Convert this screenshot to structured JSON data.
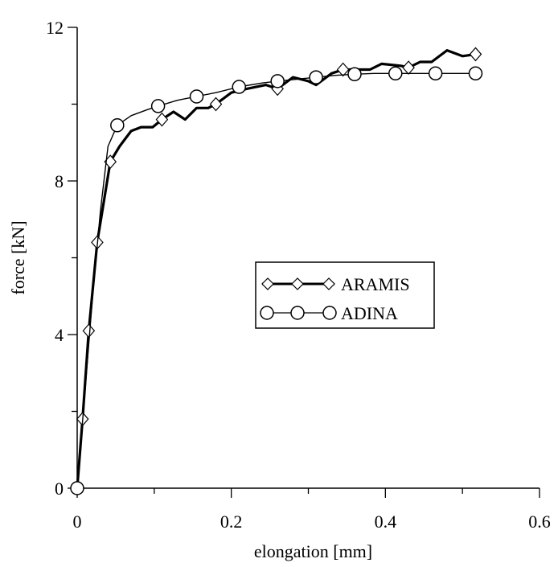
{
  "chart_data": {
    "type": "line",
    "xlabel": "elongation [mm]",
    "ylabel": "force [kN]",
    "xlim": [
      0,
      0.6
    ],
    "ylim": [
      0,
      12
    ],
    "xticks": [
      0,
      0.2,
      0.4,
      0.6
    ],
    "xtick_labels": [
      "0",
      "0.2",
      "0.4",
      "0.6"
    ],
    "yticks": [
      0,
      4,
      8,
      12
    ],
    "ytick_labels": [
      "0",
      "4",
      "8",
      "12"
    ],
    "grid": false,
    "legend_position": "center-right",
    "series": [
      {
        "name": "ARAMIS",
        "color": "#000000",
        "marker": "diamond",
        "line": [
          [
            0,
            0
          ],
          [
            0.007,
            1.8
          ],
          [
            0.015,
            4.1
          ],
          [
            0.026,
            6.4
          ],
          [
            0.043,
            8.5
          ],
          [
            0.055,
            8.9
          ],
          [
            0.07,
            9.3
          ],
          [
            0.083,
            9.4
          ],
          [
            0.098,
            9.4
          ],
          [
            0.11,
            9.6
          ],
          [
            0.125,
            9.8
          ],
          [
            0.14,
            9.6
          ],
          [
            0.155,
            9.9
          ],
          [
            0.17,
            9.9
          ],
          [
            0.18,
            10.0
          ],
          [
            0.2,
            10.3
          ],
          [
            0.22,
            10.4
          ],
          [
            0.245,
            10.5
          ],
          [
            0.26,
            10.4
          ],
          [
            0.28,
            10.7
          ],
          [
            0.3,
            10.6
          ],
          [
            0.31,
            10.5
          ],
          [
            0.33,
            10.8
          ],
          [
            0.345,
            10.9
          ],
          [
            0.36,
            10.9
          ],
          [
            0.38,
            10.9
          ],
          [
            0.395,
            11.05
          ],
          [
            0.42,
            11.0
          ],
          [
            0.43,
            10.95
          ],
          [
            0.445,
            11.1
          ],
          [
            0.46,
            11.1
          ],
          [
            0.48,
            11.4
          ],
          [
            0.5,
            11.25
          ],
          [
            0.517,
            11.3
          ]
        ],
        "markers": [
          [
            0,
            0
          ],
          [
            0.007,
            1.8
          ],
          [
            0.015,
            4.1
          ],
          [
            0.026,
            6.4
          ],
          [
            0.043,
            8.5
          ],
          [
            0.11,
            9.6
          ],
          [
            0.18,
            10.0
          ],
          [
            0.26,
            10.4
          ],
          [
            0.345,
            10.9
          ],
          [
            0.43,
            10.95
          ],
          [
            0.517,
            11.3
          ]
        ]
      },
      {
        "name": "ADINA",
        "color": "#000000",
        "marker": "circle",
        "line": [
          [
            0,
            0
          ],
          [
            0.01,
            2.5
          ],
          [
            0.02,
            5.0
          ],
          [
            0.03,
            7.2
          ],
          [
            0.04,
            8.9
          ],
          [
            0.052,
            9.45
          ],
          [
            0.07,
            9.7
          ],
          [
            0.09,
            9.85
          ],
          [
            0.105,
            9.95
          ],
          [
            0.13,
            10.1
          ],
          [
            0.155,
            10.2
          ],
          [
            0.18,
            10.3
          ],
          [
            0.21,
            10.45
          ],
          [
            0.24,
            10.55
          ],
          [
            0.26,
            10.6
          ],
          [
            0.285,
            10.65
          ],
          [
            0.31,
            10.7
          ],
          [
            0.335,
            10.75
          ],
          [
            0.36,
            10.78
          ],
          [
            0.385,
            10.8
          ],
          [
            0.413,
            10.8
          ],
          [
            0.44,
            10.8
          ],
          [
            0.465,
            10.8
          ],
          [
            0.49,
            10.8
          ],
          [
            0.517,
            10.8
          ]
        ],
        "markers": [
          [
            0,
            0
          ],
          [
            0.052,
            9.45
          ],
          [
            0.105,
            9.95
          ],
          [
            0.155,
            10.2
          ],
          [
            0.21,
            10.45
          ],
          [
            0.26,
            10.6
          ],
          [
            0.31,
            10.7
          ],
          [
            0.36,
            10.78
          ],
          [
            0.413,
            10.8
          ],
          [
            0.465,
            10.8
          ],
          [
            0.517,
            10.8
          ]
        ]
      }
    ]
  }
}
